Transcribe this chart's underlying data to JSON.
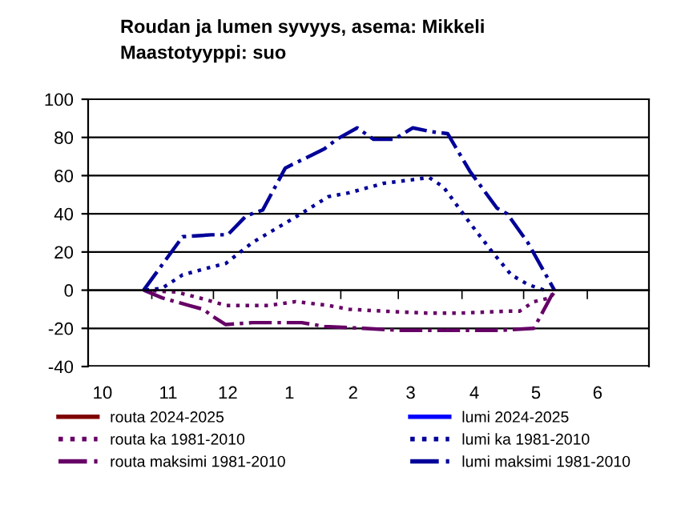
{
  "chart_data": {
    "type": "line",
    "title": "Roudan ja lumen syvyys, asema: Mikkeli\nMaastotyyppi: suo",
    "ylim": [
      -40,
      100
    ],
    "yticks": [
      -40,
      -20,
      0,
      20,
      40,
      60,
      80,
      100
    ],
    "xlim": [
      "2024-10-01",
      "2025-07-01"
    ],
    "xticks": [
      {
        "value": "2024-10-08",
        "label": "10"
      },
      {
        "value": "2024-11-09",
        "label": "11"
      },
      {
        "value": "2024-12-08",
        "label": "12"
      },
      {
        "value": "2025-01-07",
        "label": "1"
      },
      {
        "value": "2025-02-07",
        "label": "2"
      },
      {
        "value": "2025-03-07",
        "label": "3"
      },
      {
        "value": "2025-04-07",
        "label": "4"
      },
      {
        "value": "2025-05-07",
        "label": "5"
      },
      {
        "value": "2025-06-06",
        "label": "6"
      },
      {
        "value": "2024-11-01",
        "label": null
      },
      {
        "value": "2024-12-01",
        "label": null
      },
      {
        "value": "2025-01-01",
        "label": null
      },
      {
        "value": "2025-02-01",
        "label": null
      },
      {
        "value": "2025-03-01",
        "label": null
      },
      {
        "value": "2025-04-01",
        "label": null
      },
      {
        "value": "2025-05-01",
        "label": null
      },
      {
        "value": "2025-06-01",
        "label": null
      }
    ],
    "grid": "y",
    "legend": "bottom",
    "series": [
      {
        "name": "routa 2024-2025",
        "color": "#800000",
        "line_style": "solid"
      },
      {
        "name": "routa ka 1981-2010",
        "color": "#660066",
        "line_style": "dotted",
        "x": [
          "2024-10-28",
          "2024-11-13",
          "2024-11-24",
          "2024-12-07",
          "2024-12-28",
          "2025-01-10",
          "2025-01-26",
          "2025-02-05",
          "2025-02-22",
          "2025-03-15",
          "2025-03-31",
          "2025-04-23",
          "2025-04-29",
          "2025-05-06",
          "2025-05-14",
          "2025-05-16"
        ],
        "values": [
          0,
          -1,
          -4,
          -8,
          -8,
          -6,
          -8,
          -10,
          -11,
          -12,
          -12,
          -11,
          -11,
          -6,
          -4,
          -1
        ]
      },
      {
        "name": "routa maksimi 1981-2010",
        "color": "#660066",
        "line_style": "dashdot",
        "x": [
          "2024-10-28",
          "2024-11-06",
          "2024-11-19",
          "2024-11-26",
          "2024-12-01",
          "2024-12-07",
          "2024-12-20",
          "2024-12-31",
          "2025-01-13",
          "2025-01-24",
          "2025-02-12",
          "2025-03-01",
          "2025-03-28",
          "2025-04-20",
          "2025-05-06",
          "2025-05-16"
        ],
        "values": [
          0,
          -4,
          -8,
          -10,
          -14,
          -18,
          -17,
          -17,
          -17,
          -19,
          -20,
          -21,
          -21,
          -21,
          -20,
          0
        ]
      },
      {
        "name": "lumi 2024-2025",
        "color": "#0000ff",
        "line_style": "solid"
      },
      {
        "name": "lumi ka 1981-2010",
        "color": "#000099",
        "line_style": "dotted",
        "x": [
          "2024-10-29",
          "2024-11-06",
          "2024-11-16",
          "2024-11-26",
          "2024-12-07",
          "2024-12-20",
          "2025-01-08",
          "2025-01-26",
          "2025-02-05",
          "2025-02-22",
          "2025-03-09",
          "2025-03-16",
          "2025-03-23",
          "2025-04-05",
          "2025-04-15",
          "2025-04-25",
          "2025-05-03",
          "2025-05-11"
        ],
        "values": [
          0,
          1,
          8,
          11,
          14,
          25,
          37,
          49,
          51,
          56,
          58,
          59,
          54,
          35,
          21,
          8,
          3,
          0
        ]
      },
      {
        "name": "lumi maksimi 1981-2010",
        "color": "#000099",
        "line_style": "dashdot",
        "x": [
          "2024-10-28",
          "2024-11-16",
          "2024-11-30",
          "2024-12-08",
          "2024-12-17",
          "2024-12-25",
          "2025-01-05",
          "2025-01-24",
          "2025-01-30",
          "2025-02-09",
          "2025-02-17",
          "2025-02-27",
          "2025-03-08",
          "2025-03-17",
          "2025-03-25",
          "2025-04-05",
          "2025-04-18",
          "2025-04-23",
          "2025-05-03",
          "2025-05-16"
        ],
        "values": [
          0,
          28,
          29,
          29,
          39,
          42,
          64,
          74,
          79,
          85,
          79,
          79,
          85,
          83,
          82,
          62,
          43,
          40,
          25,
          0
        ]
      }
    ]
  }
}
